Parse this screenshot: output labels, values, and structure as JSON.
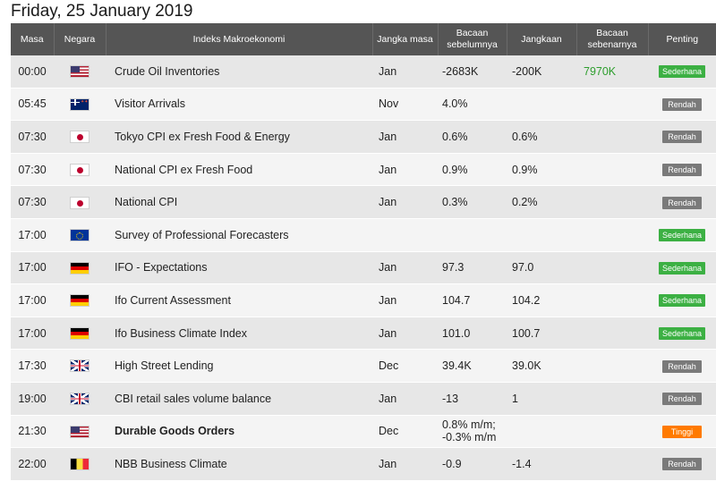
{
  "title": "Friday, 25 January 2019",
  "columns": {
    "time": "Masa",
    "country": "Negara",
    "event": "Indeks Makroekonomi",
    "period": "Jangka masa",
    "previous": "Bacaan sebelumnya",
    "forecast": "Jangkaan",
    "actual": "Bacaan sebenarnya",
    "importance": "Penting"
  },
  "colors": {
    "sederhana": "#3cb043",
    "rendah": "#7a7a7a",
    "tinggi": "#ff7a00",
    "actual_text": "#2e9e2e",
    "header_bg": "#555555"
  },
  "rows": [
    {
      "time": "00:00",
      "flag": "us-flag-icon",
      "event": "Crude Oil Inventories",
      "period": "Jan",
      "previous": "-2683K",
      "forecast": "-200K",
      "actual": "7970K",
      "importance": "Sederhana",
      "level": "sederhana",
      "bold": false
    },
    {
      "time": "05:45",
      "flag": "nz-flag-icon",
      "event": "Visitor Arrivals",
      "period": "Nov",
      "previous": "4.0%",
      "forecast": "",
      "actual": "",
      "importance": "Rendah",
      "level": "rendah",
      "bold": false
    },
    {
      "time": "07:30",
      "flag": "jp-flag-icon",
      "event": "Tokyo CPI ex Fresh Food & Energy",
      "period": "Jan",
      "previous": "0.6%",
      "forecast": "0.6%",
      "actual": "",
      "importance": "Rendah",
      "level": "rendah",
      "bold": false
    },
    {
      "time": "07:30",
      "flag": "jp-flag-icon",
      "event": "National CPI ex Fresh Food",
      "period": "Jan",
      "previous": "0.9%",
      "forecast": "0.9%",
      "actual": "",
      "importance": "Rendah",
      "level": "rendah",
      "bold": false
    },
    {
      "time": "07:30",
      "flag": "jp-flag-icon",
      "event": "National CPI",
      "period": "Jan",
      "previous": "0.3%",
      "forecast": "0.2%",
      "actual": "",
      "importance": "Rendah",
      "level": "rendah",
      "bold": false
    },
    {
      "time": "17:00",
      "flag": "eu-flag-icon",
      "event": "Survey of Professional Forecasters",
      "period": "",
      "previous": "",
      "forecast": "",
      "actual": "",
      "importance": "Sederhana",
      "level": "sederhana",
      "bold": false
    },
    {
      "time": "17:00",
      "flag": "de-flag-icon",
      "event": "IFO - Expectations",
      "period": "Jan",
      "previous": "97.3",
      "forecast": "97.0",
      "actual": "",
      "importance": "Sederhana",
      "level": "sederhana",
      "bold": false
    },
    {
      "time": "17:00",
      "flag": "de-flag-icon",
      "event": "Ifo Current Assessment",
      "period": "Jan",
      "previous": "104.7",
      "forecast": "104.2",
      "actual": "",
      "importance": "Sederhana",
      "level": "sederhana",
      "bold": false
    },
    {
      "time": "17:00",
      "flag": "de-flag-icon",
      "event": "Ifo Business Climate Index",
      "period": "Jan",
      "previous": "101.0",
      "forecast": "100.7",
      "actual": "",
      "importance": "Sederhana",
      "level": "sederhana",
      "bold": false
    },
    {
      "time": "17:30",
      "flag": "gb-flag-icon",
      "event": "High Street Lending",
      "period": "Dec",
      "previous": "39.4K",
      "forecast": "39.0K",
      "actual": "",
      "importance": "Rendah",
      "level": "rendah",
      "bold": false
    },
    {
      "time": "19:00",
      "flag": "gb-flag-icon",
      "event": "CBI retail sales volume balance",
      "period": "Jan",
      "previous": "-13",
      "forecast": "1",
      "actual": "",
      "importance": "Rendah",
      "level": "rendah",
      "bold": false
    },
    {
      "time": "21:30",
      "flag": "us-flag-icon",
      "event": "Durable Goods Orders",
      "period": "Dec",
      "previous": "0.8% m/m; -0.3% m/m",
      "forecast": "",
      "actual": "",
      "importance": "Tinggi",
      "level": "tinggi",
      "bold": true
    },
    {
      "time": "22:00",
      "flag": "be-flag-icon",
      "event": "NBB Business Climate",
      "period": "Jan",
      "previous": "-0.9",
      "forecast": "-1.4",
      "actual": "",
      "importance": "Rendah",
      "level": "rendah",
      "bold": false
    }
  ]
}
